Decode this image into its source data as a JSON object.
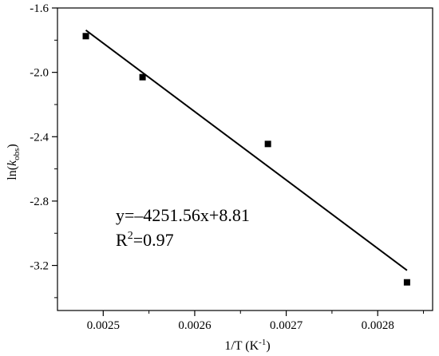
{
  "chart_data": {
    "type": "scatter",
    "title": "",
    "xlabel": "1/T (K",
    "xlabel_sup": "-1",
    "xlabel_end": ")",
    "ylabel_prefix": "ln(",
    "ylabel_var": "k",
    "ylabel_sub": "obs",
    "ylabel_suffix": ")",
    "xlim": [
      0.00245,
      0.00286
    ],
    "ylim": [
      -3.48,
      -1.6
    ],
    "xticks": [
      0.0025,
      0.0026,
      0.0027,
      0.0028
    ],
    "xtick_labels": [
      "0.0025",
      "0.0026",
      "0.0027",
      "0.0028"
    ],
    "yticks": [
      -1.6,
      -2.0,
      -2.4,
      -2.8,
      -3.2
    ],
    "ytick_labels": [
      "-1.6",
      "-2.0",
      "-2.4",
      "-2.8",
      "-3.2"
    ],
    "grid": false,
    "legend": "none",
    "series": [
      {
        "x": [
          0.002481,
          0.002543,
          0.00268,
          0.002832
        ],
        "y": [
          -1.775,
          -2.03,
          -2.445,
          -3.305
        ]
      }
    ],
    "fit_line": {
      "slope": -4251.56,
      "intercept": 8.81,
      "x_range": [
        0.002481,
        0.002832
      ]
    },
    "annotations": {
      "equation": "y=–4251.56x+8.81",
      "r2_prefix": "R",
      "r2_sup": "2",
      "r2_value": "=0.97"
    },
    "colors": {
      "marker": "#000000",
      "line": "#000000",
      "axes": "#000000"
    }
  }
}
